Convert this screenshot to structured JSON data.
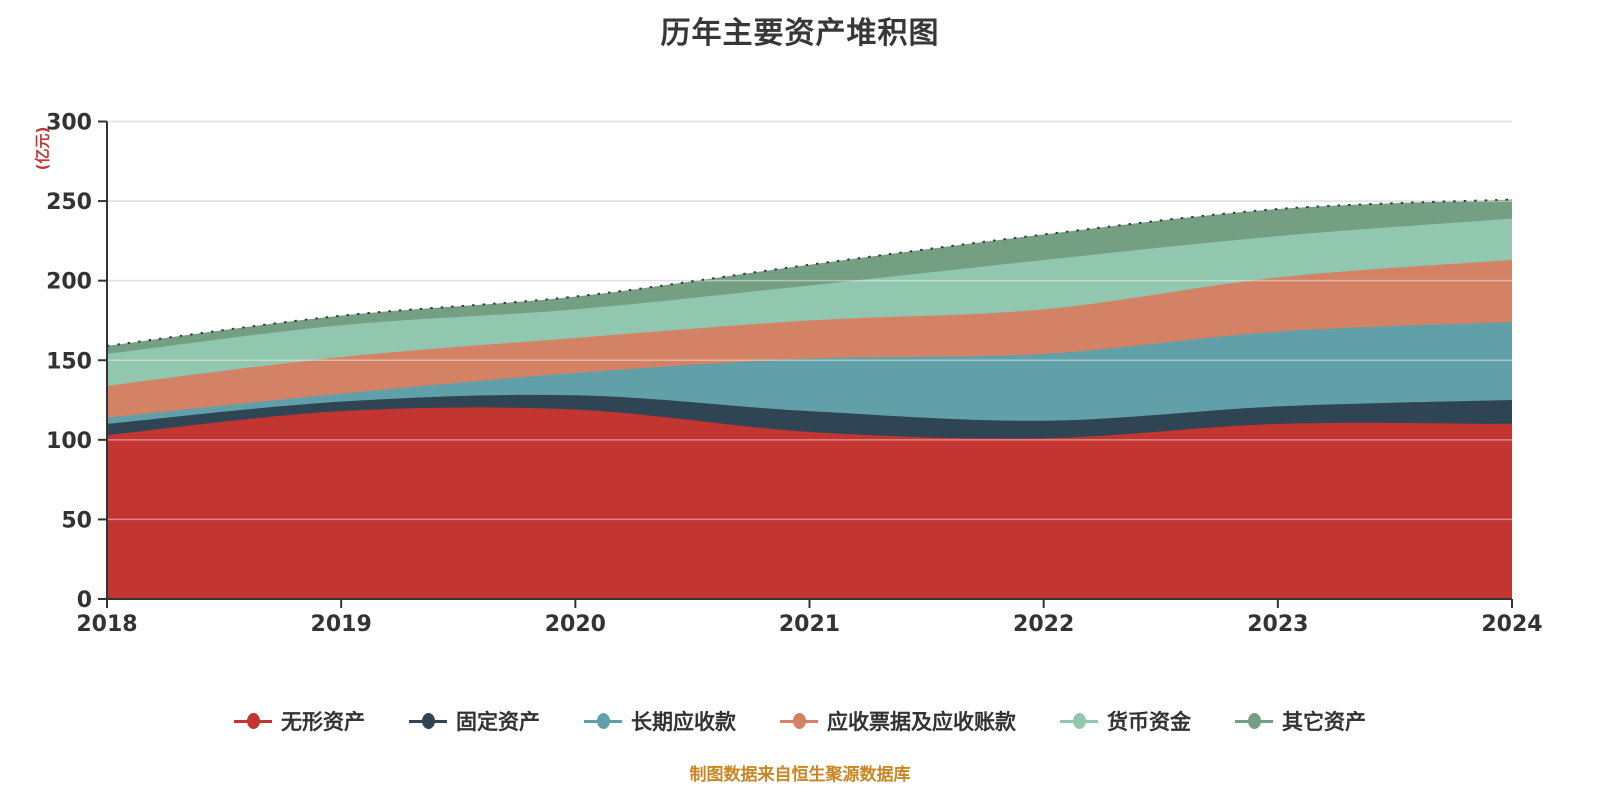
{
  "title": "历年主要资产堆积图",
  "y_axis_unit": "(亿元)",
  "footer": "制图数据来自恒生聚源数据库",
  "colors": {
    "background": "#ffffff",
    "title_text": "#373737",
    "axis_line": "#333333",
    "axis_label": "#333333",
    "gridline": "#cccccc",
    "unit_label": "#c23531",
    "footer_text": "#ca8622"
  },
  "chart_data": {
    "type": "area",
    "stacked": true,
    "smooth": true,
    "title": "历年主要资产堆积图",
    "ylabel": "(亿元)",
    "xlabel": "",
    "ylim": [
      0,
      300
    ],
    "y_ticks": [
      0,
      50,
      100,
      150,
      200,
      250,
      300
    ],
    "grid": true,
    "legend_position": "bottom",
    "categories": [
      "2018",
      "2019",
      "2020",
      "2021",
      "2022",
      "2023",
      "2024"
    ],
    "series": [
      {
        "name": "无形资产",
        "color": "#c23531",
        "values": [
          103,
          118,
          119,
          105,
          101,
          110,
          110
        ]
      },
      {
        "name": "固定资产",
        "color": "#2f4554",
        "values": [
          7,
          6,
          9,
          13,
          11,
          11,
          15
        ]
      },
      {
        "name": "长期应收款",
        "color": "#61a0a8",
        "values": [
          4,
          5,
          14,
          33,
          42,
          47,
          49
        ]
      },
      {
        "name": "应收票据及应收账款",
        "color": "#d48265",
        "values": [
          20,
          23,
          22,
          24,
          28,
          34,
          39
        ]
      },
      {
        "name": "货币资金",
        "color": "#91c7ae",
        "values": [
          20,
          20,
          18,
          22,
          31,
          26,
          26
        ]
      },
      {
        "name": "其它资产",
        "color": "#749f83",
        "values": [
          5,
          6,
          8,
          13,
          16,
          17,
          12
        ]
      }
    ],
    "stacked_totals": [
      159,
      178,
      190,
      210,
      229,
      245,
      251
    ]
  }
}
